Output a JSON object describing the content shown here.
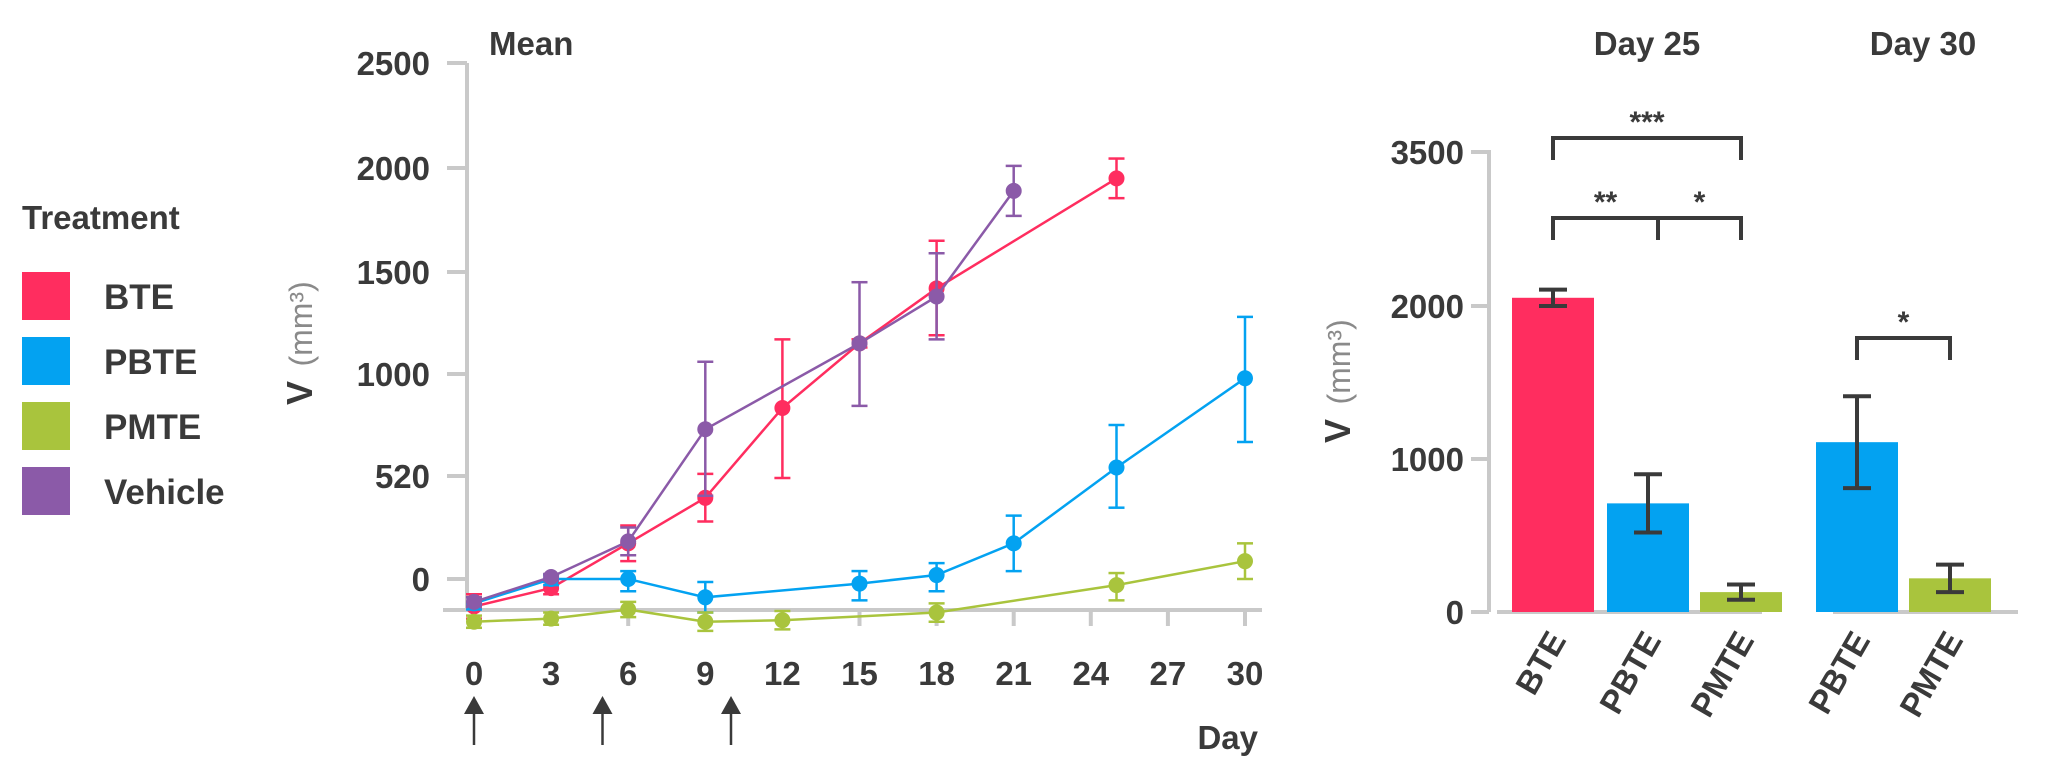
{
  "colors": {
    "BTE": "#ff2d5f",
    "PBTE": "#03a2f1",
    "PMTE": "#a9c43d",
    "Vehicle": "#8b5aa8",
    "axis": "#c9c9c9",
    "text": "#3a3a3a"
  },
  "legend": {
    "title": "Treatment",
    "items": [
      "BTE",
      "PBTE",
      "PMTE",
      "Vehicle"
    ]
  },
  "chart_data": [
    {
      "type": "line",
      "title": "Mean",
      "xlabel": "Day",
      "ylabel": "V",
      "ylabel_unit": "(mm³)",
      "x_ticks": [
        "0",
        "3",
        "6",
        "9",
        "12",
        "15",
        "18",
        "21",
        "24",
        "27",
        "30"
      ],
      "y_ticks": [
        "0",
        "520",
        "1000",
        "1500",
        "2000",
        "2500"
      ],
      "treatment_days": [
        0,
        5,
        10
      ],
      "series": [
        {
          "name": "BTE",
          "points": [
            {
              "x": 0,
              "y": -90,
              "err": 40
            },
            {
              "x": 3,
              "y": -30,
              "err": 20
            },
            {
              "x": 6,
              "y": 180,
              "err": 90
            },
            {
              "x": 9,
              "y": 410,
              "err": 120
            },
            {
              "x": 12,
              "y": 840,
              "err": 330
            },
            {
              "x": 15,
              "y": 1150,
              "err": 20
            },
            {
              "x": 18,
              "y": 1420,
              "err": 230
            },
            {
              "x": 25,
              "y": 1950,
              "err": 95
            }
          ]
        },
        {
          "name": "PBTE",
          "points": [
            {
              "x": 0,
              "y": -80,
              "err": 20
            },
            {
              "x": 3,
              "y": 0,
              "err": 20
            },
            {
              "x": 6,
              "y": 0,
              "err": 40
            },
            {
              "x": 9,
              "y": -60,
              "err": 50
            },
            {
              "x": 15,
              "y": -15,
              "err": 55
            },
            {
              "x": 18,
              "y": 20,
              "err": 60
            },
            {
              "x": 21,
              "y": 180,
              "err": 140
            },
            {
              "x": 25,
              "y": 560,
              "err": 200
            },
            {
              "x": 30,
              "y": 980,
              "err": 300
            }
          ]
        },
        {
          "name": "PMTE",
          "points": [
            {
              "x": 0,
              "y": -140,
              "err": 20
            },
            {
              "x": 3,
              "y": -130,
              "err": 20
            },
            {
              "x": 6,
              "y": -100,
              "err": 25
            },
            {
              "x": 9,
              "y": -140,
              "err": 30
            },
            {
              "x": 12,
              "y": -135,
              "err": 30
            },
            {
              "x": 18,
              "y": -110,
              "err": 30
            },
            {
              "x": 25,
              "y": -20,
              "err": 50
            },
            {
              "x": 30,
              "y": 90,
              "err": 90
            }
          ]
        },
        {
          "name": "Vehicle",
          "points": [
            {
              "x": 0,
              "y": -75,
              "err": 15
            },
            {
              "x": 3,
              "y": 10,
              "err": 15
            },
            {
              "x": 6,
              "y": 190,
              "err": 70
            },
            {
              "x": 9,
              "y": 740,
              "err": 320
            },
            {
              "x": 15,
              "y": 1150,
              "err": 300
            },
            {
              "x": 18,
              "y": 1380,
              "err": 210
            },
            {
              "x": 21,
              "y": 1890,
              "err": 120
            }
          ]
        }
      ]
    },
    {
      "type": "bar",
      "title": "Day 25",
      "ylabel": "V",
      "ylabel_unit": "(mm³)",
      "ylim": [
        0,
        3500
      ],
      "y_ticks": [
        "0",
        "1000",
        "2000",
        "3500"
      ],
      "categories": [
        "BTE",
        "PBTE",
        "PMTE"
      ],
      "values": [
        2080,
        710,
        130
      ],
      "errors": [
        80,
        190,
        50
      ],
      "significance": [
        {
          "from": 0,
          "to": 1,
          "label": "**"
        },
        {
          "from": 1,
          "to": 2,
          "label": "*"
        },
        {
          "from": 0,
          "to": 2,
          "label": "***"
        }
      ]
    },
    {
      "type": "bar",
      "title": "Day 30",
      "categories": [
        "PBTE",
        "PMTE"
      ],
      "values": [
        1110,
        220
      ],
      "errors": [
        300,
        90
      ],
      "significance": [
        {
          "from": 0,
          "to": 1,
          "label": "*"
        }
      ]
    }
  ]
}
